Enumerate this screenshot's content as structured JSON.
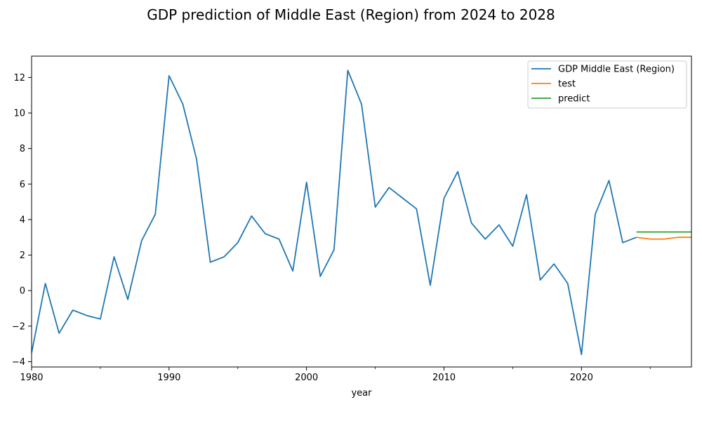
{
  "chart_data": {
    "type": "line",
    "title": "GDP prediction of Middle East (Region) from 2024 to 2028",
    "xlabel": "year",
    "ylabel": "",
    "xlim": [
      1980,
      2028
    ],
    "ylim": [
      -4.3,
      13.2
    ],
    "xticks": [
      1980,
      1990,
      2000,
      2010,
      2020
    ],
    "yticks": [
      -4,
      -2,
      0,
      2,
      4,
      6,
      8,
      10,
      12
    ],
    "grid": false,
    "legend_position": "top-right",
    "series": [
      {
        "name": "GDP Middle East (Region)",
        "color": "#1f77b4",
        "x": [
          1980,
          1981,
          1982,
          1983,
          1984,
          1985,
          1986,
          1987,
          1988,
          1989,
          1990,
          1991,
          1992,
          1993,
          1994,
          1995,
          1996,
          1997,
          1998,
          1999,
          2000,
          2001,
          2002,
          2003,
          2004,
          2005,
          2006,
          2007,
          2008,
          2009,
          2010,
          2011,
          2012,
          2013,
          2014,
          2015,
          2016,
          2017,
          2018,
          2019,
          2020,
          2021,
          2022,
          2023,
          2024
        ],
        "values": [
          -3.5,
          0.4,
          -2.4,
          -1.1,
          -1.4,
          -1.6,
          1.9,
          -0.5,
          2.8,
          4.3,
          12.1,
          10.5,
          7.4,
          1.6,
          1.9,
          2.7,
          4.2,
          3.2,
          2.9,
          1.1,
          6.1,
          0.8,
          2.3,
          12.4,
          10.5,
          4.7,
          5.8,
          5.2,
          4.6,
          0.3,
          5.2,
          6.7,
          3.8,
          2.9,
          3.7,
          2.5,
          5.4,
          0.6,
          1.5,
          0.4,
          -3.6,
          4.3,
          6.2,
          2.7,
          3.0
        ]
      },
      {
        "name": "test",
        "color": "#ff7f0e",
        "x": [
          2024,
          2025,
          2026,
          2027,
          2028
        ],
        "values": [
          3.0,
          2.9,
          2.9,
          3.0,
          3.0
        ]
      },
      {
        "name": "predict",
        "color": "#2ca02c",
        "x": [
          2024,
          2025,
          2026,
          2027,
          2028
        ],
        "values": [
          3.3,
          3.3,
          3.3,
          3.3,
          3.3
        ]
      }
    ]
  }
}
